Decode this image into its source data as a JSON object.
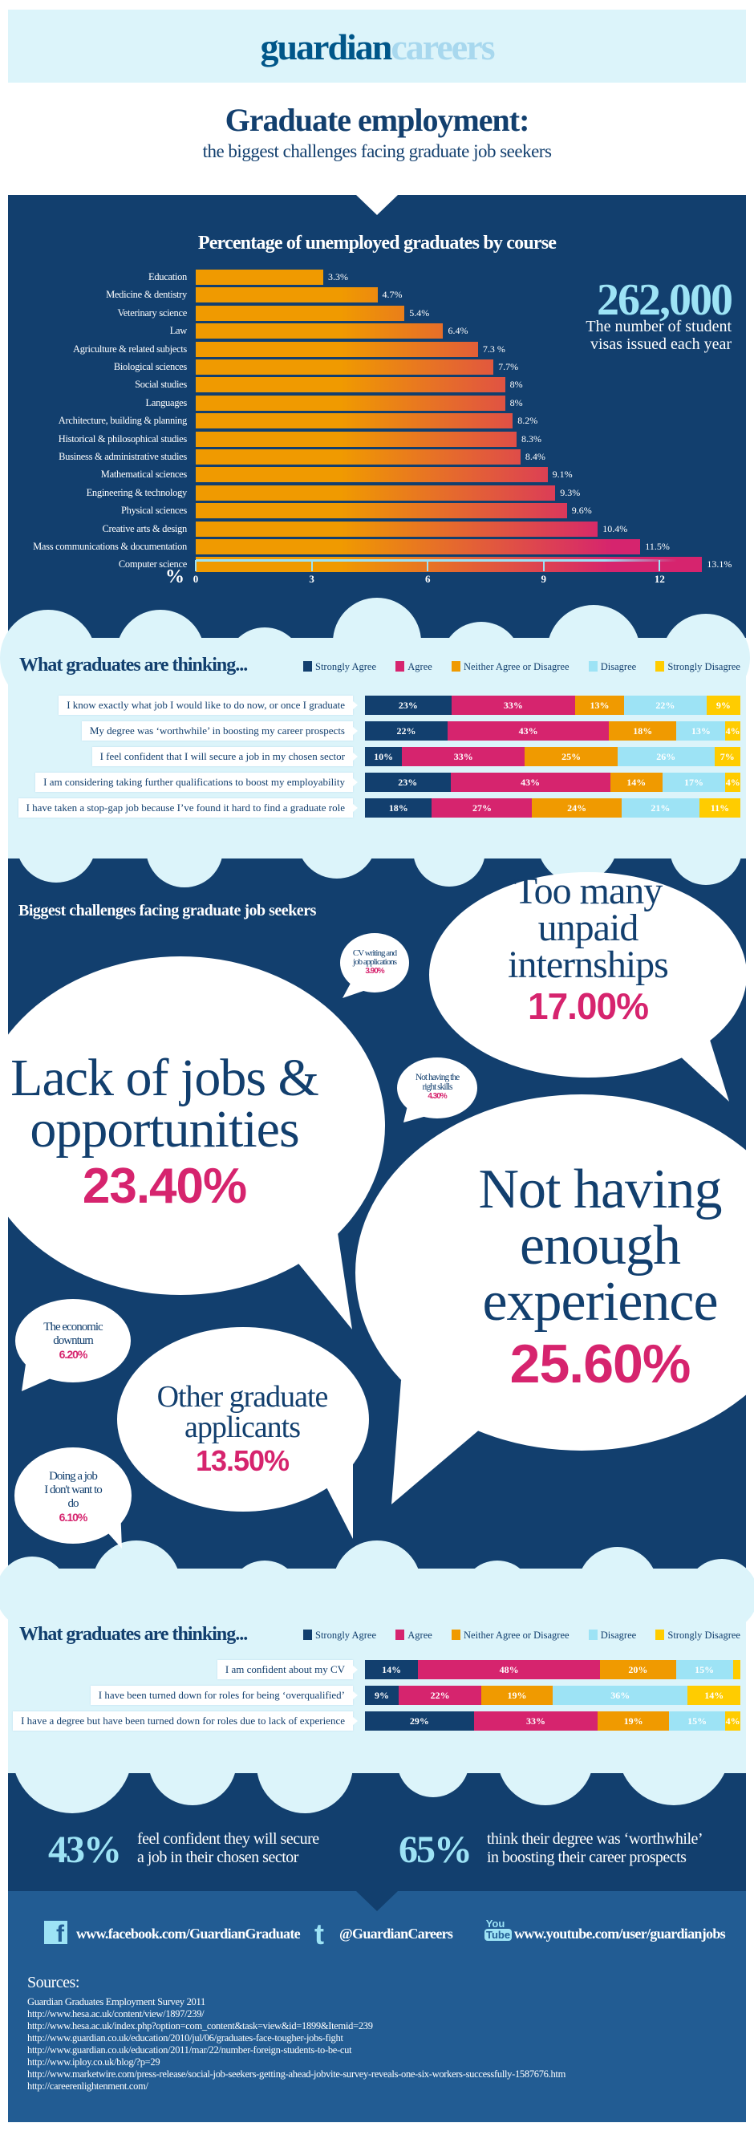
{
  "header": {
    "logo_part1": "guardian",
    "logo_part2": "careers",
    "title": "Graduate employment:",
    "subtitle": "the biggest challenges facing graduate job seekers"
  },
  "colors": {
    "navy": "#123f6e",
    "light": "#dcf4fa",
    "orange": "#f09a00",
    "pink": "#d6246e",
    "cyan": "#9de3f5",
    "yellow": "#ffcc00",
    "footer": "#225c93"
  },
  "chart_data": {
    "type": "bar",
    "orientation": "horizontal",
    "title": "Percentage of unemployed graduates by course",
    "xlabel": "%",
    "xlim": [
      0,
      13.5
    ],
    "xticks": [
      0,
      3,
      6,
      9,
      12
    ],
    "categories": [
      "Education",
      "Medicine & dentistry",
      "Veterinary science",
      "Law",
      "Agriculture & related subjects",
      "Biological sciences",
      "Social studies",
      "Languages",
      "Architecture, building & planning",
      "Historical & philosophical studies",
      "Business & administrative studies",
      "Mathematical sciences",
      "Engineering & technology",
      "Physical sciences",
      "Creative arts & design",
      "Mass communications & documentation",
      "Computer science"
    ],
    "values": [
      3.3,
      4.7,
      5.4,
      6.4,
      7.3,
      7.7,
      8,
      8,
      8.2,
      8.3,
      8.4,
      9.1,
      9.3,
      9.6,
      10.4,
      11.5,
      13.1
    ],
    "value_labels": [
      "3.3%",
      "4.7%",
      "5.4%",
      "6.4%",
      "7.3 %",
      "7.7%",
      "8%",
      "8%",
      "8.2%",
      "8.3%",
      "8.4%",
      "9.1%",
      "9.3%",
      "9.6%",
      "10.4%",
      "11.5%",
      "13.1%"
    ]
  },
  "visas": {
    "number": "262,000",
    "caption_line1": "The number of student",
    "caption_line2": "visas issued each year"
  },
  "legend": [
    "Strongly Agree",
    "Agree",
    "Neither Agree or Disagree",
    "Disagree",
    "Strongly Disagree"
  ],
  "survey1": {
    "title": "What graduates are thinking...",
    "rows": [
      {
        "label": "I know exactly what job I would like to do now, or once I graduate",
        "values": [
          23,
          33,
          13,
          22,
          9
        ]
      },
      {
        "label": "My degree was ‘worthwhile’ in boosting my career prospects",
        "values": [
          22,
          43,
          18,
          13,
          4
        ]
      },
      {
        "label": "I feel confident that I will secure a job in my chosen sector",
        "values": [
          10,
          33,
          25,
          26,
          7
        ]
      },
      {
        "label": "I am considering taking further qualifications to boost my employability",
        "values": [
          23,
          43,
          14,
          17,
          4
        ]
      },
      {
        "label": "I have taken a stop-gap job because I’ve found it hard to find a graduate role",
        "values": [
          18,
          27,
          24,
          21,
          11
        ]
      }
    ]
  },
  "challenges": {
    "title": "Biggest challenges facing graduate job seekers",
    "items": [
      {
        "lines": [
          "Too many",
          "unpaid",
          "internships"
        ],
        "value": "17.00%"
      },
      {
        "lines": [
          "CV writing and",
          "job applications"
        ],
        "value": "3.90%"
      },
      {
        "lines": [
          "Lack of jobs &",
          "opportunities"
        ],
        "value": "23.40%"
      },
      {
        "lines": [
          "Not having the",
          "right skills"
        ],
        "value": "4.30%"
      },
      {
        "lines": [
          "Not having",
          "enough",
          "experience"
        ],
        "value": "25.60%"
      },
      {
        "lines": [
          "The economic",
          "downturn"
        ],
        "value": "6.20%"
      },
      {
        "lines": [
          "Other graduate",
          "applicants"
        ],
        "value": "13.50%"
      },
      {
        "lines": [
          "Doing a job",
          "I don't want to",
          "do"
        ],
        "value": "6.10%"
      }
    ]
  },
  "survey2": {
    "title": "What graduates are thinking...",
    "rows": [
      {
        "label": "I am confident about my CV",
        "values": [
          14,
          48,
          20,
          15,
          2
        ],
        "hide_last_label": true
      },
      {
        "label": "I have been turned down for roles for being ‘overqualified’",
        "values": [
          9,
          22,
          19,
          36,
          14
        ]
      },
      {
        "label": "I have a degree but have been turned down for roles due to lack of experience",
        "values": [
          29,
          33,
          19,
          15,
          4
        ]
      }
    ]
  },
  "stats": [
    {
      "number": "43%",
      "line1": "feel confident they will secure",
      "line2": "a job in their chosen sector"
    },
    {
      "number": "65%",
      "line1": "think their degree was ‘worthwhile’",
      "line2": "in boosting their career prospects"
    }
  ],
  "footer": {
    "facebook": "www.facebook.com/GuardianGraduate",
    "twitter": "@GuardianCareers",
    "youtube": "www.youtube.com/user/guardianjobs",
    "sources_title": "Sources:",
    "sources": [
      "Guardian Graduates Employment Survey 2011",
      "http://www.hesa.ac.uk/content/view/1897/239/",
      "http://www.hesa.ac.uk/index.php?option=com_content&task=view&id=1899&Itemid=239",
      "http://www.guardian.co.uk/education/2010/jul/06/graduates-face-tougher-jobs-fight",
      "http://www.guardian.co.uk/education/2011/mar/22/number-foreign-students-to-be-cut",
      "http://www.iploy.co.uk/blog/?p=29",
      "http://www.marketwire.com/press-release/social-job-seekers-getting-ahead-jobvite-survey-reveals-one-six-workers-successfully-1587676.htm",
      "http://careerenlightenment.com/"
    ]
  }
}
